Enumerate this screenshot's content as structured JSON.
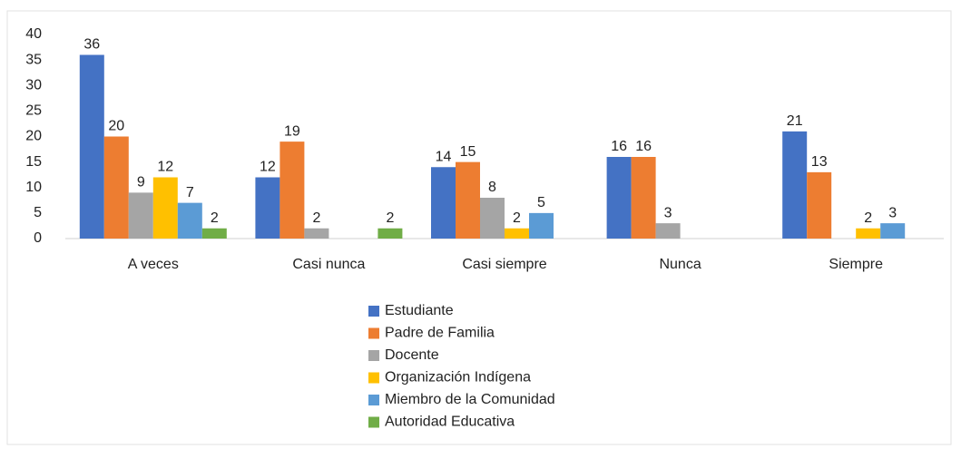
{
  "chart_data": {
    "type": "bar",
    "categories": [
      "A veces",
      "Casi nunca",
      "Casi siempre",
      "Nunca",
      "Siempre"
    ],
    "series": [
      {
        "name": "Estudiante",
        "color": "#4472c4",
        "values": [
          36,
          12,
          14,
          16,
          21
        ]
      },
      {
        "name": "Padre de Familia",
        "color": "#ed7d31",
        "values": [
          20,
          19,
          15,
          16,
          13
        ]
      },
      {
        "name": "Docente",
        "color": "#a5a5a5",
        "values": [
          9,
          2,
          8,
          3,
          null
        ]
      },
      {
        "name": "Organización Indígena",
        "color": "#ffc000",
        "values": [
          12,
          null,
          2,
          null,
          2
        ]
      },
      {
        "name": "Miembro de la Comunidad",
        "color": "#5b9bd5",
        "values": [
          7,
          null,
          5,
          null,
          3
        ]
      },
      {
        "name": "Autoridad Educativa",
        "color": "#70ad47",
        "values": [
          2,
          2,
          null,
          null,
          null
        ]
      }
    ],
    "ylim": [
      0,
      40
    ],
    "yticks": [
      0,
      5,
      10,
      15,
      20,
      25,
      30,
      35,
      40
    ],
    "grid": false,
    "legend": "bottom"
  }
}
